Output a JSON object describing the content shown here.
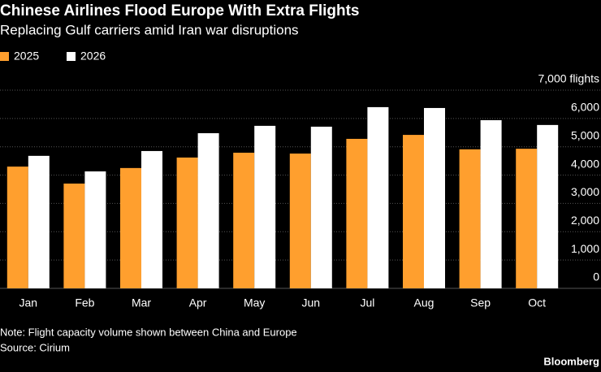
{
  "chart_data": {
    "type": "bar",
    "title": "Chinese Airlines Flood Europe With Extra Flights",
    "subtitle": "Replacing Gulf carriers amid Iran war disruptions",
    "categories": [
      "Jan",
      "Feb",
      "Mar",
      "Apr",
      "May",
      "Jun",
      "Jul",
      "Aug",
      "Sep",
      "Oct"
    ],
    "series": [
      {
        "name": "2025",
        "color": "#ff9f2e",
        "values": [
          4300,
          3700,
          4250,
          4620,
          4790,
          4760,
          5280,
          5420,
          4910,
          4930
        ]
      },
      {
        "name": "2026",
        "color": "#ffffff",
        "values": [
          4680,
          4130,
          4850,
          5480,
          5740,
          5710,
          6400,
          6370,
          5940,
          5770
        ]
      }
    ],
    "ylim": [
      0,
      7000
    ],
    "yticks": [
      0,
      {
        "value": 1000,
        "label": "1,000"
      },
      {
        "value": 2000,
        "label": "2,000"
      },
      {
        "value": 3000,
        "label": "3,000"
      },
      {
        "value": 4000,
        "label": "4,000"
      },
      {
        "value": 5000,
        "label": "5,000"
      },
      {
        "value": 6000,
        "label": "6,000"
      },
      {
        "value": 7000,
        "label": "7,000 flights"
      }
    ],
    "grid": true,
    "note": "Note: Flight capacity volume shown between China and Europe",
    "source": "Source: Cirium",
    "brand": "Bloomberg"
  }
}
